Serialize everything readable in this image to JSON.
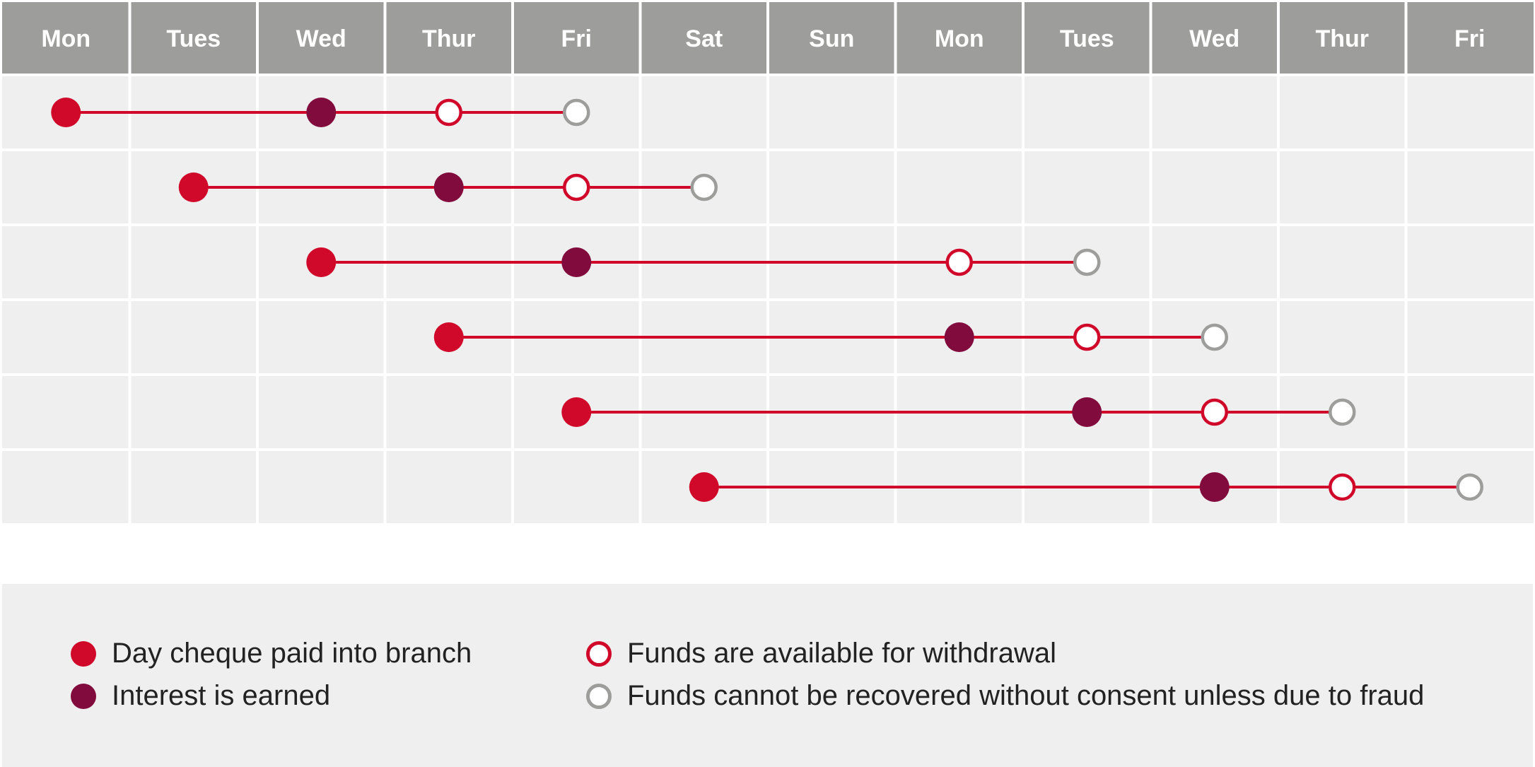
{
  "colors": {
    "header_bg": "#9d9d9c",
    "cell_bg": "#efefef",
    "grid_line": "#ffffff",
    "paid_in": "#d0092a",
    "interest": "#820b3d",
    "available": "#d0092a",
    "cannot_recover": "#9d9d9c",
    "line": "#d0092a"
  },
  "days": [
    "Mon",
    "Tues",
    "Wed",
    "Thur",
    "Fri",
    "Sat",
    "Sun",
    "Mon",
    "Tues",
    "Wed",
    "Thur",
    "Fri"
  ],
  "rows": [
    {
      "paid_in": 0,
      "interest": 2,
      "available": 3,
      "cannot_recover": 4
    },
    {
      "paid_in": 1,
      "interest": 3,
      "available": 4,
      "cannot_recover": 5
    },
    {
      "paid_in": 2,
      "interest": 4,
      "available": 7,
      "cannot_recover": 8
    },
    {
      "paid_in": 3,
      "interest": 7,
      "available": 8,
      "cannot_recover": 9
    },
    {
      "paid_in": 4,
      "interest": 8,
      "available": 9,
      "cannot_recover": 10
    },
    {
      "paid_in": 5,
      "interest": 9,
      "available": 10,
      "cannot_recover": 11
    }
  ],
  "legend": {
    "paid_in": "Day cheque paid into branch",
    "interest": "Interest is earned",
    "available": "Funds are available for withdrawal",
    "cannot_recover": "Funds cannot be recovered without consent unless due to fraud"
  }
}
